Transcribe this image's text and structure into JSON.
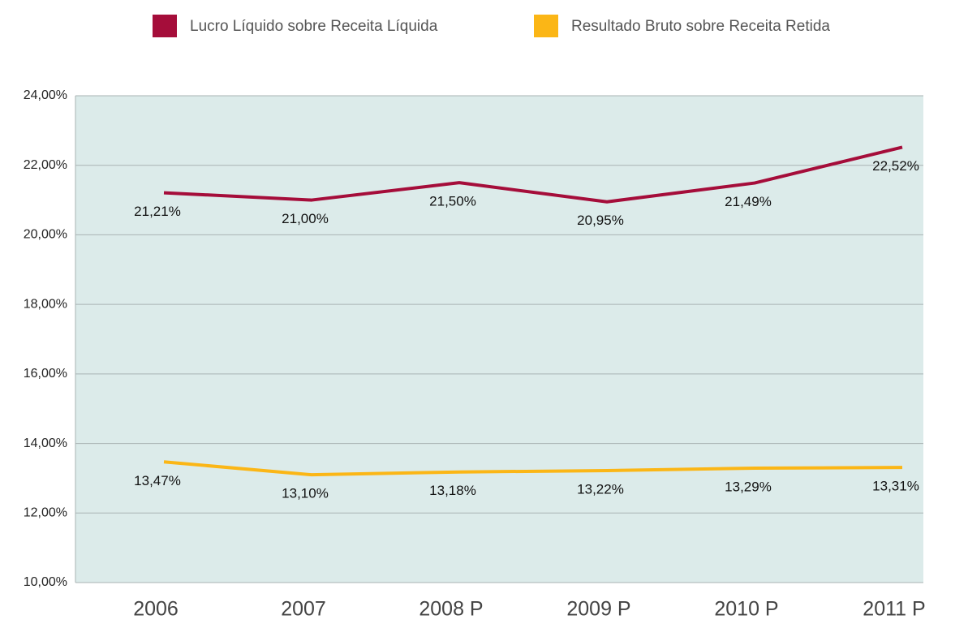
{
  "chart_data": {
    "type": "line",
    "categories": [
      "2006",
      "2007",
      "2008 P",
      "2009 P",
      "2010 P",
      "2011 P"
    ],
    "series": [
      {
        "name": "Lucro Líquido sobre Receita Líquida",
        "color": "#a50d3a",
        "values": [
          21.21,
          21.0,
          21.5,
          20.95,
          21.49,
          22.52
        ],
        "value_labels": [
          "21,21%",
          "21,00%",
          "21,50%",
          "20,95%",
          "21,49%",
          "22,52%"
        ]
      },
      {
        "name": "Resultado Bruto sobre Receita Retida",
        "color": "#fbb616",
        "values": [
          13.47,
          13.1,
          13.18,
          13.22,
          13.29,
          13.31
        ],
        "value_labels": [
          "13,47%",
          "13,10%",
          "13,18%",
          "13,22%",
          "13,29%",
          "13,31%"
        ]
      }
    ],
    "ylim": [
      10,
      24
    ],
    "yticks": [
      {
        "value": 10,
        "label": "10,00%"
      },
      {
        "value": 12,
        "label": "12,00%"
      },
      {
        "value": 14,
        "label": "14,00%"
      },
      {
        "value": 16,
        "label": "16,00%"
      },
      {
        "value": 18,
        "label": "18,00%"
      },
      {
        "value": 20,
        "label": "20,00%"
      },
      {
        "value": 22,
        "label": "22,00%"
      },
      {
        "value": 24,
        "label": "24,00%"
      }
    ],
    "grid": true,
    "legend": "top"
  }
}
